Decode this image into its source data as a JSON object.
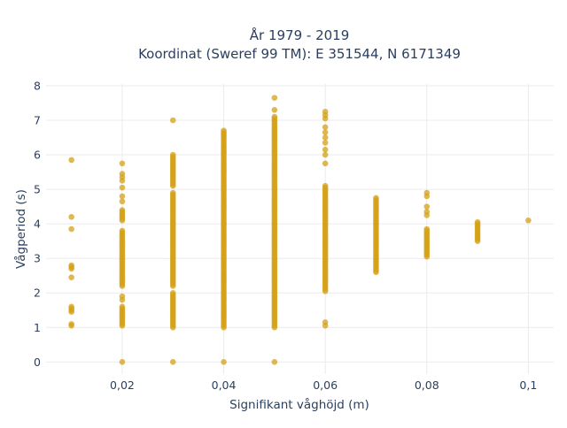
{
  "chart_data": {
    "type": "scatter",
    "title_line1": "År 1979 - 2019",
    "title_line2": "Koordinat (Sweref 99 TM): E 351544, N 6171349",
    "xlabel": "Signifikant våghöjd (m)",
    "ylabel": "Vågperiod (s)",
    "xlim": [
      0.005,
      0.105
    ],
    "ylim": [
      -0.35,
      8.05
    ],
    "xticks": [
      0.02,
      0.04,
      0.06,
      0.08,
      0.1
    ],
    "xtick_labels": [
      "0,02",
      "0,04",
      "0,06",
      "0,08",
      "0,1"
    ],
    "yticks": [
      0,
      1,
      2,
      3,
      4,
      5,
      6,
      7,
      8
    ],
    "ytick_labels": [
      "0",
      "1",
      "2",
      "3",
      "4",
      "5",
      "6",
      "7",
      "8"
    ],
    "grid": true,
    "marker_color": "#d4a017",
    "columns": [
      {
        "x": 0.01,
        "ranges": [
          [
            1.05,
            1.1
          ],
          [
            1.45,
            1.6
          ]
        ],
        "points": [
          2.45,
          2.7,
          2.75,
          2.8,
          3.85,
          4.2,
          5.85
        ]
      },
      {
        "x": 0.02,
        "ranges": [
          [
            1.05,
            1.6
          ],
          [
            2.2,
            3.8
          ],
          [
            4.1,
            4.4
          ]
        ],
        "points": [
          0.0,
          1.8,
          1.9,
          4.65,
          4.8,
          5.05,
          5.25,
          5.35,
          5.45,
          5.75
        ]
      },
      {
        "x": 0.03,
        "ranges": [
          [
            1.0,
            2.0
          ],
          [
            2.2,
            4.9
          ],
          [
            5.1,
            6.0
          ]
        ],
        "points": [
          0.0,
          7.0
        ]
      },
      {
        "x": 0.04,
        "ranges": [
          [
            1.0,
            6.7
          ]
        ],
        "points": [
          0.0
        ]
      },
      {
        "x": 0.05,
        "ranges": [
          [
            1.0,
            7.1
          ]
        ],
        "points": [
          0.0,
          7.3,
          7.65
        ]
      },
      {
        "x": 0.06,
        "ranges": [
          [
            2.05,
            5.1
          ]
        ],
        "points": [
          1.05,
          1.15,
          5.75,
          6.0,
          6.15,
          6.35,
          6.5,
          6.65,
          6.8,
          7.05,
          7.15,
          7.25
        ]
      },
      {
        "x": 0.07,
        "ranges": [
          [
            2.6,
            4.75
          ]
        ],
        "points": []
      },
      {
        "x": 0.08,
        "ranges": [
          [
            3.05,
            3.85
          ]
        ],
        "points": [
          4.25,
          4.35,
          4.5,
          4.8,
          4.9
        ]
      },
      {
        "x": 0.09,
        "ranges": [
          [
            3.5,
            4.05
          ]
        ],
        "points": []
      },
      {
        "x": 0.1,
        "ranges": [],
        "points": [
          4.1
        ]
      }
    ]
  }
}
